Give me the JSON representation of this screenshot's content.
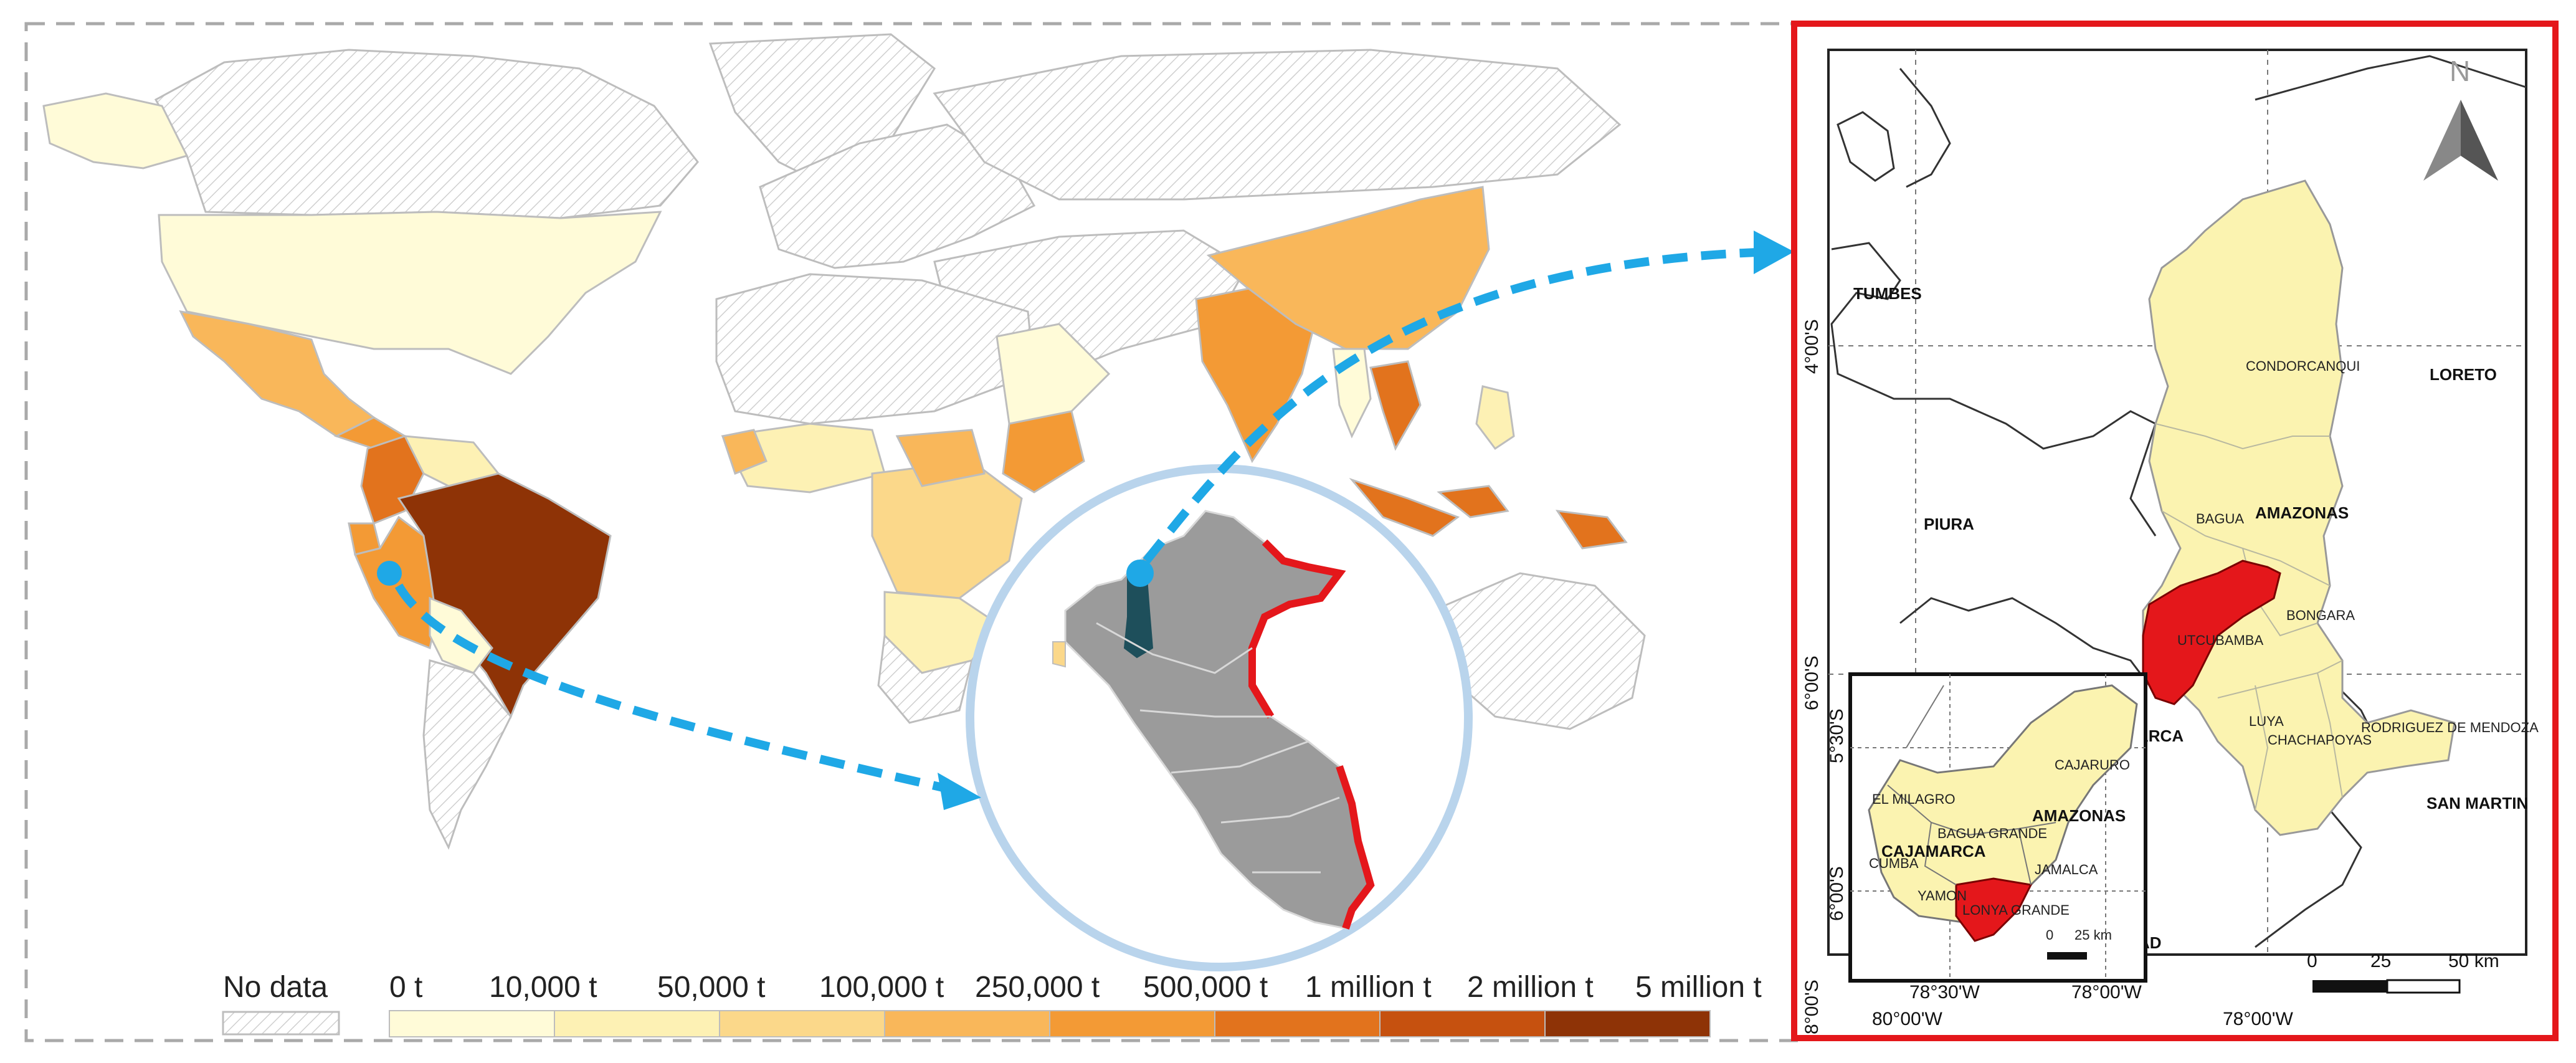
{
  "legend": {
    "no_data": "No data",
    "items": [
      {
        "label": "0 t",
        "color": "#fffbd8"
      },
      {
        "label": "10,000 t",
        "color": "#fdf1b4"
      },
      {
        "label": "50,000 t",
        "color": "#fbd88a"
      },
      {
        "label": "100,000 t",
        "color": "#f9b75a"
      },
      {
        "label": "250,000 t",
        "color": "#f39a35"
      },
      {
        "label": "500,000 t",
        "color": "#e2731d"
      },
      {
        "label": "1 million t",
        "color": "#c6510f"
      },
      {
        "label": "2 million t",
        "color": "#8e3306"
      },
      {
        "label": "5 million t",
        "color": null
      }
    ]
  },
  "colors": {
    "no_data_hatch": "#cfcfcf",
    "highlight_red": "#e4171b",
    "peru_grey": "#9b9b9b",
    "amazonas_yellow": "#fbf3b0",
    "arrow_blue": "#1fa8e6",
    "circle_blue": "#b9d4ec",
    "frame_red": "#e4171b"
  },
  "detail_map": {
    "north_label": "N",
    "regions": {
      "tumbes": "TUMBES",
      "loreto": "LORETO",
      "piura": "PIURA",
      "amazonas": "AMAZONAS",
      "cajamarca_partial": "ARCA",
      "san_martin": "SAN MARTIN",
      "la_libertad_partial": "AD"
    },
    "provinces": {
      "condorcanqui": "CONDORCANQUI",
      "bagua": "BAGUA",
      "utcubamba": "UTCUBAMBA",
      "bongara": "BONGARA",
      "luya": "LUYA",
      "chachapoyas": "CHACHAPOYAS",
      "rodriguez": "RODRIGUEZ DE MENDOZA"
    },
    "lat_labels": [
      "4°00'S",
      "6°00'S",
      "8°00'S"
    ],
    "lon_labels": [
      "80°00'W",
      "78°00'W"
    ],
    "scale": {
      "ticks": [
        "0",
        "25",
        "50 km"
      ]
    },
    "inset": {
      "amazonas": "AMAZONAS",
      "cajamarca": "CAJAMARCA",
      "districts": {
        "cajaruro": "CAJARURO",
        "el_milagro": "EL MILAGRO",
        "bagua_grande": "BAGUA GRANDE",
        "cumba": "CUMBA",
        "jamalca": "JAMALCA",
        "yamon": "YAMON",
        "lonya_grande": "LONYA GRANDE"
      },
      "lat_labels": [
        "5°30'S",
        "6°00'S"
      ],
      "lon_labels": [
        "78°30'W",
        "78°00'W"
      ],
      "scale": {
        "ticks": [
          "0",
          "25 km"
        ]
      }
    }
  }
}
